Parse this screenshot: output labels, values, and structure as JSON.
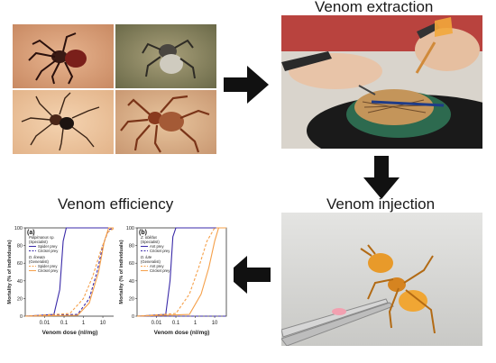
{
  "titles": {
    "extraction": "Venom extraction",
    "injection": "Venom injection",
    "efficiency": "Venom efficiency"
  },
  "chart_data": [
    {
      "type": "line",
      "panel_label": "(a)",
      "xlabel": "Venom dose (nl/mg)",
      "ylabel": "Mortality (% of individuals)",
      "x_scale": "log",
      "x_ticks": [
        "0.01",
        "0.1",
        "1",
        "10"
      ],
      "y_ticks": [
        "0",
        "20",
        "40",
        "60",
        "80",
        "100"
      ],
      "ylim": [
        0,
        100
      ],
      "legend": {
        "groups": [
          {
            "heading": "Palpimanus sp.",
            "subheading": "(Specialist)",
            "entries": [
              "Spider prey",
              "Cricket prey"
            ]
          },
          {
            "heading": "D. lineata",
            "subheading": "(Generalist)",
            "entries": [
              "Spider prey",
              "Cricket prey"
            ]
          }
        ]
      },
      "series": [
        {
          "name": "Palpimanus sp. – Spider prey",
          "color": "#3a2aa8",
          "dash": "solid",
          "x": [
            0.001,
            0.03,
            0.06,
            0.09,
            0.13,
            40
          ],
          "y": [
            0,
            2,
            30,
            85,
            100,
            100
          ]
        },
        {
          "name": "Palpimanus sp. – Cricket prey",
          "color": "#3a2aa8",
          "dash": "dashed",
          "x": [
            0.001,
            0.5,
            2,
            5,
            10,
            20,
            40
          ],
          "y": [
            0,
            2,
            20,
            50,
            80,
            98,
            100
          ]
        },
        {
          "name": "D. lineata – Spider prey",
          "color": "#f5a04a",
          "dash": "dashed",
          "x": [
            0.001,
            0.2,
            1,
            3,
            8,
            18,
            40
          ],
          "y": [
            0,
            3,
            20,
            45,
            75,
            95,
            100
          ]
        },
        {
          "name": "D. lineata – Cricket prey",
          "color": "#f5a04a",
          "dash": "solid",
          "x": [
            0.001,
            0.5,
            2,
            6,
            12,
            20,
            40
          ],
          "y": [
            0,
            1,
            15,
            50,
            85,
            100,
            100
          ]
        }
      ]
    },
    {
      "type": "line",
      "panel_label": "(b)",
      "xlabel": "Venom dose (nl/mg)",
      "ylabel": "Mortality (% of individuals)",
      "x_scale": "log",
      "x_ticks": [
        "0.01",
        "0.1",
        "1",
        "10"
      ],
      "y_ticks": [
        "0",
        "20",
        "40",
        "60",
        "80",
        "100"
      ],
      "ylim": [
        0,
        100
      ],
      "legend": {
        "groups": [
          {
            "heading": "Z. oblidus",
            "subheading": "(Specialist)",
            "entries": [
              "Ant prey",
              "Cricket prey"
            ]
          },
          {
            "heading": "D. lute",
            "subheading": "(Generalist)",
            "entries": [
              "Ant prey",
              "Cricket prey"
            ]
          }
        ]
      },
      "series": [
        {
          "name": "Z. oblidus – Ant prey",
          "color": "#3a2aa8",
          "dash": "solid",
          "x": [
            0.001,
            0.03,
            0.05,
            0.07,
            0.1,
            40
          ],
          "y": [
            0,
            2,
            40,
            90,
            100,
            100
          ]
        },
        {
          "name": "Z. oblidus – Cricket prey",
          "color": "#3a2aa8",
          "dash": "dashed",
          "x": [
            0.001,
            40
          ],
          "y": [
            0,
            0
          ]
        },
        {
          "name": "D. lute – Ant prey",
          "color": "#f5a04a",
          "dash": "dashed",
          "x": [
            0.001,
            0.1,
            0.5,
            1.5,
            4,
            10,
            40
          ],
          "y": [
            0,
            3,
            25,
            55,
            85,
            100,
            100
          ]
        },
        {
          "name": "D. lute – Cricket prey",
          "color": "#f5a04a",
          "dash": "solid",
          "x": [
            0.001,
            0.5,
            2,
            5,
            10,
            16,
            40
          ],
          "y": [
            0,
            2,
            25,
            55,
            85,
            100,
            100
          ]
        }
      ]
    }
  ],
  "colors": {
    "specialist": "#3a2aa8",
    "generalist": "#f5a04a",
    "arrow": "#111111"
  },
  "icons": {
    "arrow_right": "arrow-right-icon",
    "arrow_down": "arrow-down-icon",
    "arrow_left": "arrow-left-icon"
  }
}
